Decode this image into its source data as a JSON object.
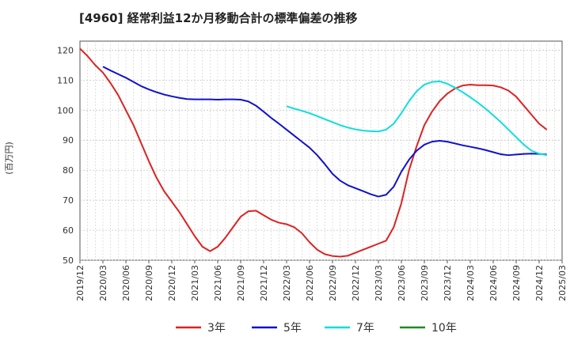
{
  "chart_data": {
    "type": "line",
    "title": "[4960]  経常利益12か月移動合計の標準偏差の推移",
    "ylabel": "(百万円)",
    "ylim": [
      50,
      123
    ],
    "yticks": [
      50,
      60,
      70,
      80,
      90,
      100,
      110,
      120
    ],
    "xlim": [
      "2019/12",
      "2025/03"
    ],
    "xticks": [
      "2019/12",
      "2020/03",
      "2020/06",
      "2020/09",
      "2020/12",
      "2021/03",
      "2021/06",
      "2021/09",
      "2021/12",
      "2022/03",
      "2022/06",
      "2022/09",
      "2022/12",
      "2023/03",
      "2023/06",
      "2023/09",
      "2023/12",
      "2024/03",
      "2024/06",
      "2024/09",
      "2024/12",
      "2025/03"
    ],
    "grid": true,
    "legend_position": "bottom",
    "series": [
      {
        "name": "3年",
        "color": "#dd2222",
        "points": [
          [
            "2019/12",
            120.5
          ],
          [
            "2020/01",
            118
          ],
          [
            "2020/02",
            115
          ],
          [
            "2020/03",
            112.5
          ],
          [
            "2020/04",
            109
          ],
          [
            "2020/05",
            105
          ],
          [
            "2020/06",
            100
          ],
          [
            "2020/07",
            95
          ],
          [
            "2020/08",
            89
          ],
          [
            "2020/09",
            83
          ],
          [
            "2020/10",
            77.5
          ],
          [
            "2020/11",
            73
          ],
          [
            "2020/12",
            69.5
          ],
          [
            "2021/01",
            66
          ],
          [
            "2021/02",
            62
          ],
          [
            "2021/03",
            58
          ],
          [
            "2021/04",
            54.5
          ],
          [
            "2021/05",
            53
          ],
          [
            "2021/06",
            54.5
          ],
          [
            "2021/07",
            57.5
          ],
          [
            "2021/08",
            61
          ],
          [
            "2021/09",
            64.5
          ],
          [
            "2021/10",
            66.3
          ],
          [
            "2021/11",
            66.5
          ],
          [
            "2021/12",
            65
          ],
          [
            "2022/01",
            63.5
          ],
          [
            "2022/02",
            62.5
          ],
          [
            "2022/03",
            62
          ],
          [
            "2022/04",
            61
          ],
          [
            "2022/05",
            59
          ],
          [
            "2022/06",
            56
          ],
          [
            "2022/07",
            53.5
          ],
          [
            "2022/08",
            52
          ],
          [
            "2022/09",
            51.4
          ],
          [
            "2022/10",
            51.2
          ],
          [
            "2022/11",
            51.5
          ],
          [
            "2022/12",
            52.5
          ],
          [
            "2023/01",
            53.5
          ],
          [
            "2023/02",
            54.5
          ],
          [
            "2023/03",
            55.5
          ],
          [
            "2023/04",
            56.5
          ],
          [
            "2023/05",
            61
          ],
          [
            "2023/06",
            69
          ],
          [
            "2023/07",
            80
          ],
          [
            "2023/08",
            88
          ],
          [
            "2023/09",
            95
          ],
          [
            "2023/10",
            99.5
          ],
          [
            "2023/11",
            103
          ],
          [
            "2023/12",
            105.5
          ],
          [
            "2024/01",
            107.2
          ],
          [
            "2024/02",
            108.2
          ],
          [
            "2024/03",
            108.5
          ],
          [
            "2024/04",
            108.3
          ],
          [
            "2024/05",
            108.3
          ],
          [
            "2024/06",
            108.2
          ],
          [
            "2024/07",
            107.6
          ],
          [
            "2024/08",
            106.5
          ],
          [
            "2024/09",
            104.5
          ],
          [
            "2024/10",
            101.5
          ],
          [
            "2024/11",
            98.5
          ],
          [
            "2024/12",
            95.5
          ],
          [
            "2025/01",
            93.5
          ]
        ]
      },
      {
        "name": "5年",
        "color": "#1111cc",
        "points": [
          [
            "2020/03",
            114.5
          ],
          [
            "2020/04",
            113.2
          ],
          [
            "2020/05",
            112
          ],
          [
            "2020/06",
            110.8
          ],
          [
            "2020/07",
            109.4
          ],
          [
            "2020/08",
            108
          ],
          [
            "2020/09",
            106.9
          ],
          [
            "2020/10",
            106
          ],
          [
            "2020/11",
            105.2
          ],
          [
            "2020/12",
            104.6
          ],
          [
            "2021/01",
            104.1
          ],
          [
            "2021/02",
            103.7
          ],
          [
            "2021/03",
            103.6
          ],
          [
            "2021/04",
            103.6
          ],
          [
            "2021/05",
            103.6
          ],
          [
            "2021/06",
            103.5
          ],
          [
            "2021/07",
            103.6
          ],
          [
            "2021/08",
            103.6
          ],
          [
            "2021/09",
            103.5
          ],
          [
            "2021/10",
            102.9
          ],
          [
            "2021/11",
            101.5
          ],
          [
            "2021/12",
            99.5
          ],
          [
            "2022/01",
            97.4
          ],
          [
            "2022/02",
            95.5
          ],
          [
            "2022/03",
            93.5
          ],
          [
            "2022/04",
            91.5
          ],
          [
            "2022/05",
            89.5
          ],
          [
            "2022/06",
            87.5
          ],
          [
            "2022/07",
            85
          ],
          [
            "2022/08",
            82
          ],
          [
            "2022/09",
            78.8
          ],
          [
            "2022/10",
            76.5
          ],
          [
            "2022/11",
            75
          ],
          [
            "2022/12",
            74
          ],
          [
            "2023/01",
            73
          ],
          [
            "2023/02",
            72
          ],
          [
            "2023/03",
            71.2
          ],
          [
            "2023/04",
            71.8
          ],
          [
            "2023/05",
            74.5
          ],
          [
            "2023/06",
            79.5
          ],
          [
            "2023/07",
            83.5
          ],
          [
            "2023/08",
            86.5
          ],
          [
            "2023/09",
            88.5
          ],
          [
            "2023/10",
            89.5
          ],
          [
            "2023/11",
            89.8
          ],
          [
            "2023/12",
            89.5
          ],
          [
            "2024/01",
            88.9
          ],
          [
            "2024/02",
            88.3
          ],
          [
            "2024/03",
            87.8
          ],
          [
            "2024/04",
            87.3
          ],
          [
            "2024/05",
            86.7
          ],
          [
            "2024/06",
            86
          ],
          [
            "2024/07",
            85.3
          ],
          [
            "2024/08",
            85
          ],
          [
            "2024/09",
            85.2
          ],
          [
            "2024/10",
            85.4
          ],
          [
            "2024/11",
            85.5
          ],
          [
            "2024/12",
            85.4
          ],
          [
            "2025/01",
            85.2
          ]
        ]
      },
      {
        "name": "7年",
        "color": "#11dddd",
        "points": [
          [
            "2022/03",
            101.3
          ],
          [
            "2022/04",
            100.5
          ],
          [
            "2022/05",
            99.8
          ],
          [
            "2022/06",
            99
          ],
          [
            "2022/07",
            98
          ],
          [
            "2022/08",
            97
          ],
          [
            "2022/09",
            96
          ],
          [
            "2022/10",
            95
          ],
          [
            "2022/11",
            94.2
          ],
          [
            "2022/12",
            93.6
          ],
          [
            "2023/01",
            93.2
          ],
          [
            "2023/02",
            93
          ],
          [
            "2023/03",
            92.9
          ],
          [
            "2023/04",
            93.5
          ],
          [
            "2023/05",
            95.5
          ],
          [
            "2023/06",
            99
          ],
          [
            "2023/07",
            103
          ],
          [
            "2023/08",
            106.3
          ],
          [
            "2023/09",
            108.5
          ],
          [
            "2023/10",
            109.4
          ],
          [
            "2023/11",
            109.6
          ],
          [
            "2023/12",
            108.8
          ],
          [
            "2024/01",
            107.5
          ],
          [
            "2024/02",
            106
          ],
          [
            "2024/03",
            104.3
          ],
          [
            "2024/04",
            102.5
          ],
          [
            "2024/05",
            100.5
          ],
          [
            "2024/06",
            98.3
          ],
          [
            "2024/07",
            96
          ],
          [
            "2024/08",
            93.5
          ],
          [
            "2024/09",
            91
          ],
          [
            "2024/10",
            88.5
          ],
          [
            "2024/11",
            86.5
          ],
          [
            "2024/12",
            85.5
          ],
          [
            "2025/01",
            85
          ]
        ]
      },
      {
        "name": "10年",
        "color": "#228822",
        "points": []
      }
    ]
  }
}
